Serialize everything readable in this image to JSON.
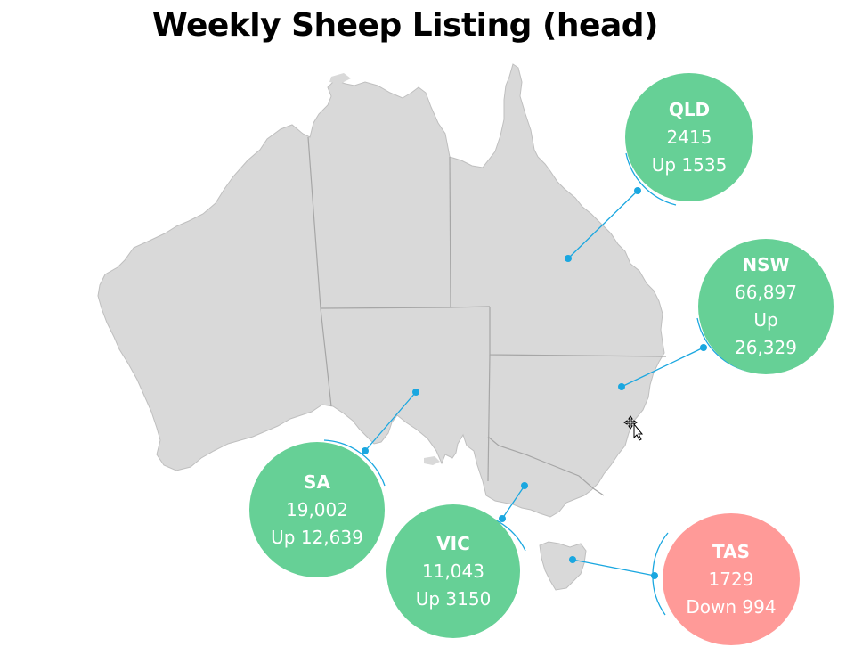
{
  "title": "Weekly Sheep Listing (head)",
  "colors": {
    "land": "#d9d9d9",
    "border": "#a6a6a6",
    "up": "#66d096",
    "down": "#ff9a98",
    "connector": "#1aa7e0"
  },
  "states": {
    "qld": {
      "name": "QLD",
      "value": "2415",
      "change": "Up 1535",
      "trend": "up"
    },
    "nsw": {
      "name": "NSW",
      "value": "66,897",
      "change": "Up\n26,329",
      "trend": "up"
    },
    "sa": {
      "name": "SA",
      "value": "19,002",
      "change": "Up 12,639",
      "trend": "up"
    },
    "vic": {
      "name": "VIC",
      "value": "11,043",
      "change": "Up 3150",
      "trend": "up"
    },
    "tas": {
      "name": "TAS",
      "value": "1729",
      "change": "Down 994",
      "trend": "down"
    }
  },
  "cursor": "move-cursor-icon"
}
